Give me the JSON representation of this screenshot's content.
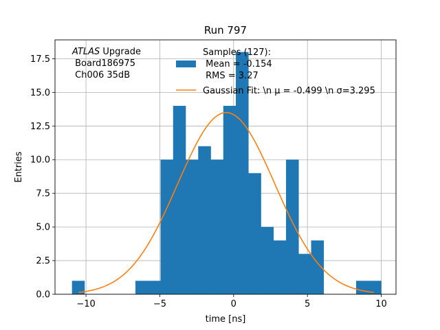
{
  "chart_data": {
    "type": "bar",
    "title": "Run 797",
    "xlabel": "time [ns]",
    "ylabel": "Entries",
    "xlim": [
      -12.1,
      11.0
    ],
    "ylim": [
      0,
      18.9
    ],
    "grid": true,
    "xticks": [
      -10,
      -5,
      0,
      5,
      10
    ],
    "xtick_labels": [
      "−10",
      "−5",
      "0",
      "5",
      "10"
    ],
    "yticks": [
      0,
      2.5,
      5,
      7.5,
      10,
      12.5,
      15,
      17.5
    ],
    "ytick_labels": [
      "0.0",
      "2.5",
      "5.0",
      "7.5",
      "10.0",
      "12.5",
      "15.0",
      "17.5"
    ],
    "annotation": {
      "italic": "ATLAS",
      "line1_rest": " Upgrade",
      "line2": " Board186975",
      "line3": " Ch006 35dB"
    },
    "legend_position": "upper-right",
    "histogram": {
      "name": "Samples (127):",
      "name_line2": " Mean = -0.154",
      "name_line3": " RMS = 3.27",
      "color": "#1f77b4",
      "bins": [
        {
          "x0": -10.95,
          "x1": -10.1,
          "count": 1
        },
        {
          "x0": -6.65,
          "x1": -5.8,
          "count": 1
        },
        {
          "x0": -5.8,
          "x1": -4.95,
          "count": 1
        },
        {
          "x0": -4.95,
          "x1": -4.1,
          "count": 10
        },
        {
          "x0": -4.1,
          "x1": -3.25,
          "count": 14
        },
        {
          "x0": -3.25,
          "x1": -2.4,
          "count": 10
        },
        {
          "x0": -2.4,
          "x1": -1.55,
          "count": 11
        },
        {
          "x0": -1.55,
          "x1": -0.7,
          "count": 10
        },
        {
          "x0": -0.7,
          "x1": 0.15,
          "count": 14
        },
        {
          "x0": 0.15,
          "x1": 1.0,
          "count": 18
        },
        {
          "x0": 1.0,
          "x1": 1.85,
          "count": 9
        },
        {
          "x0": 1.85,
          "x1": 2.7,
          "count": 5
        },
        {
          "x0": 2.7,
          "x1": 3.55,
          "count": 4
        },
        {
          "x0": 3.55,
          "x1": 4.4,
          "count": 10
        },
        {
          "x0": 4.4,
          "x1": 5.25,
          "count": 3
        },
        {
          "x0": 5.25,
          "x1": 6.1,
          "count": 4
        },
        {
          "x0": 8.3,
          "x1": 9.15,
          "count": 1
        },
        {
          "x0": 9.15,
          "x1": 10.0,
          "count": 1
        }
      ]
    },
    "fit": {
      "name": "Gaussian Fit: \\n μ = -0.499 \\n σ=3.295",
      "color": "#ff7f0e",
      "mu": -0.499,
      "sigma": 3.295,
      "amplitude": 13.5,
      "x_range": [
        -10.5,
        9.5
      ]
    }
  }
}
